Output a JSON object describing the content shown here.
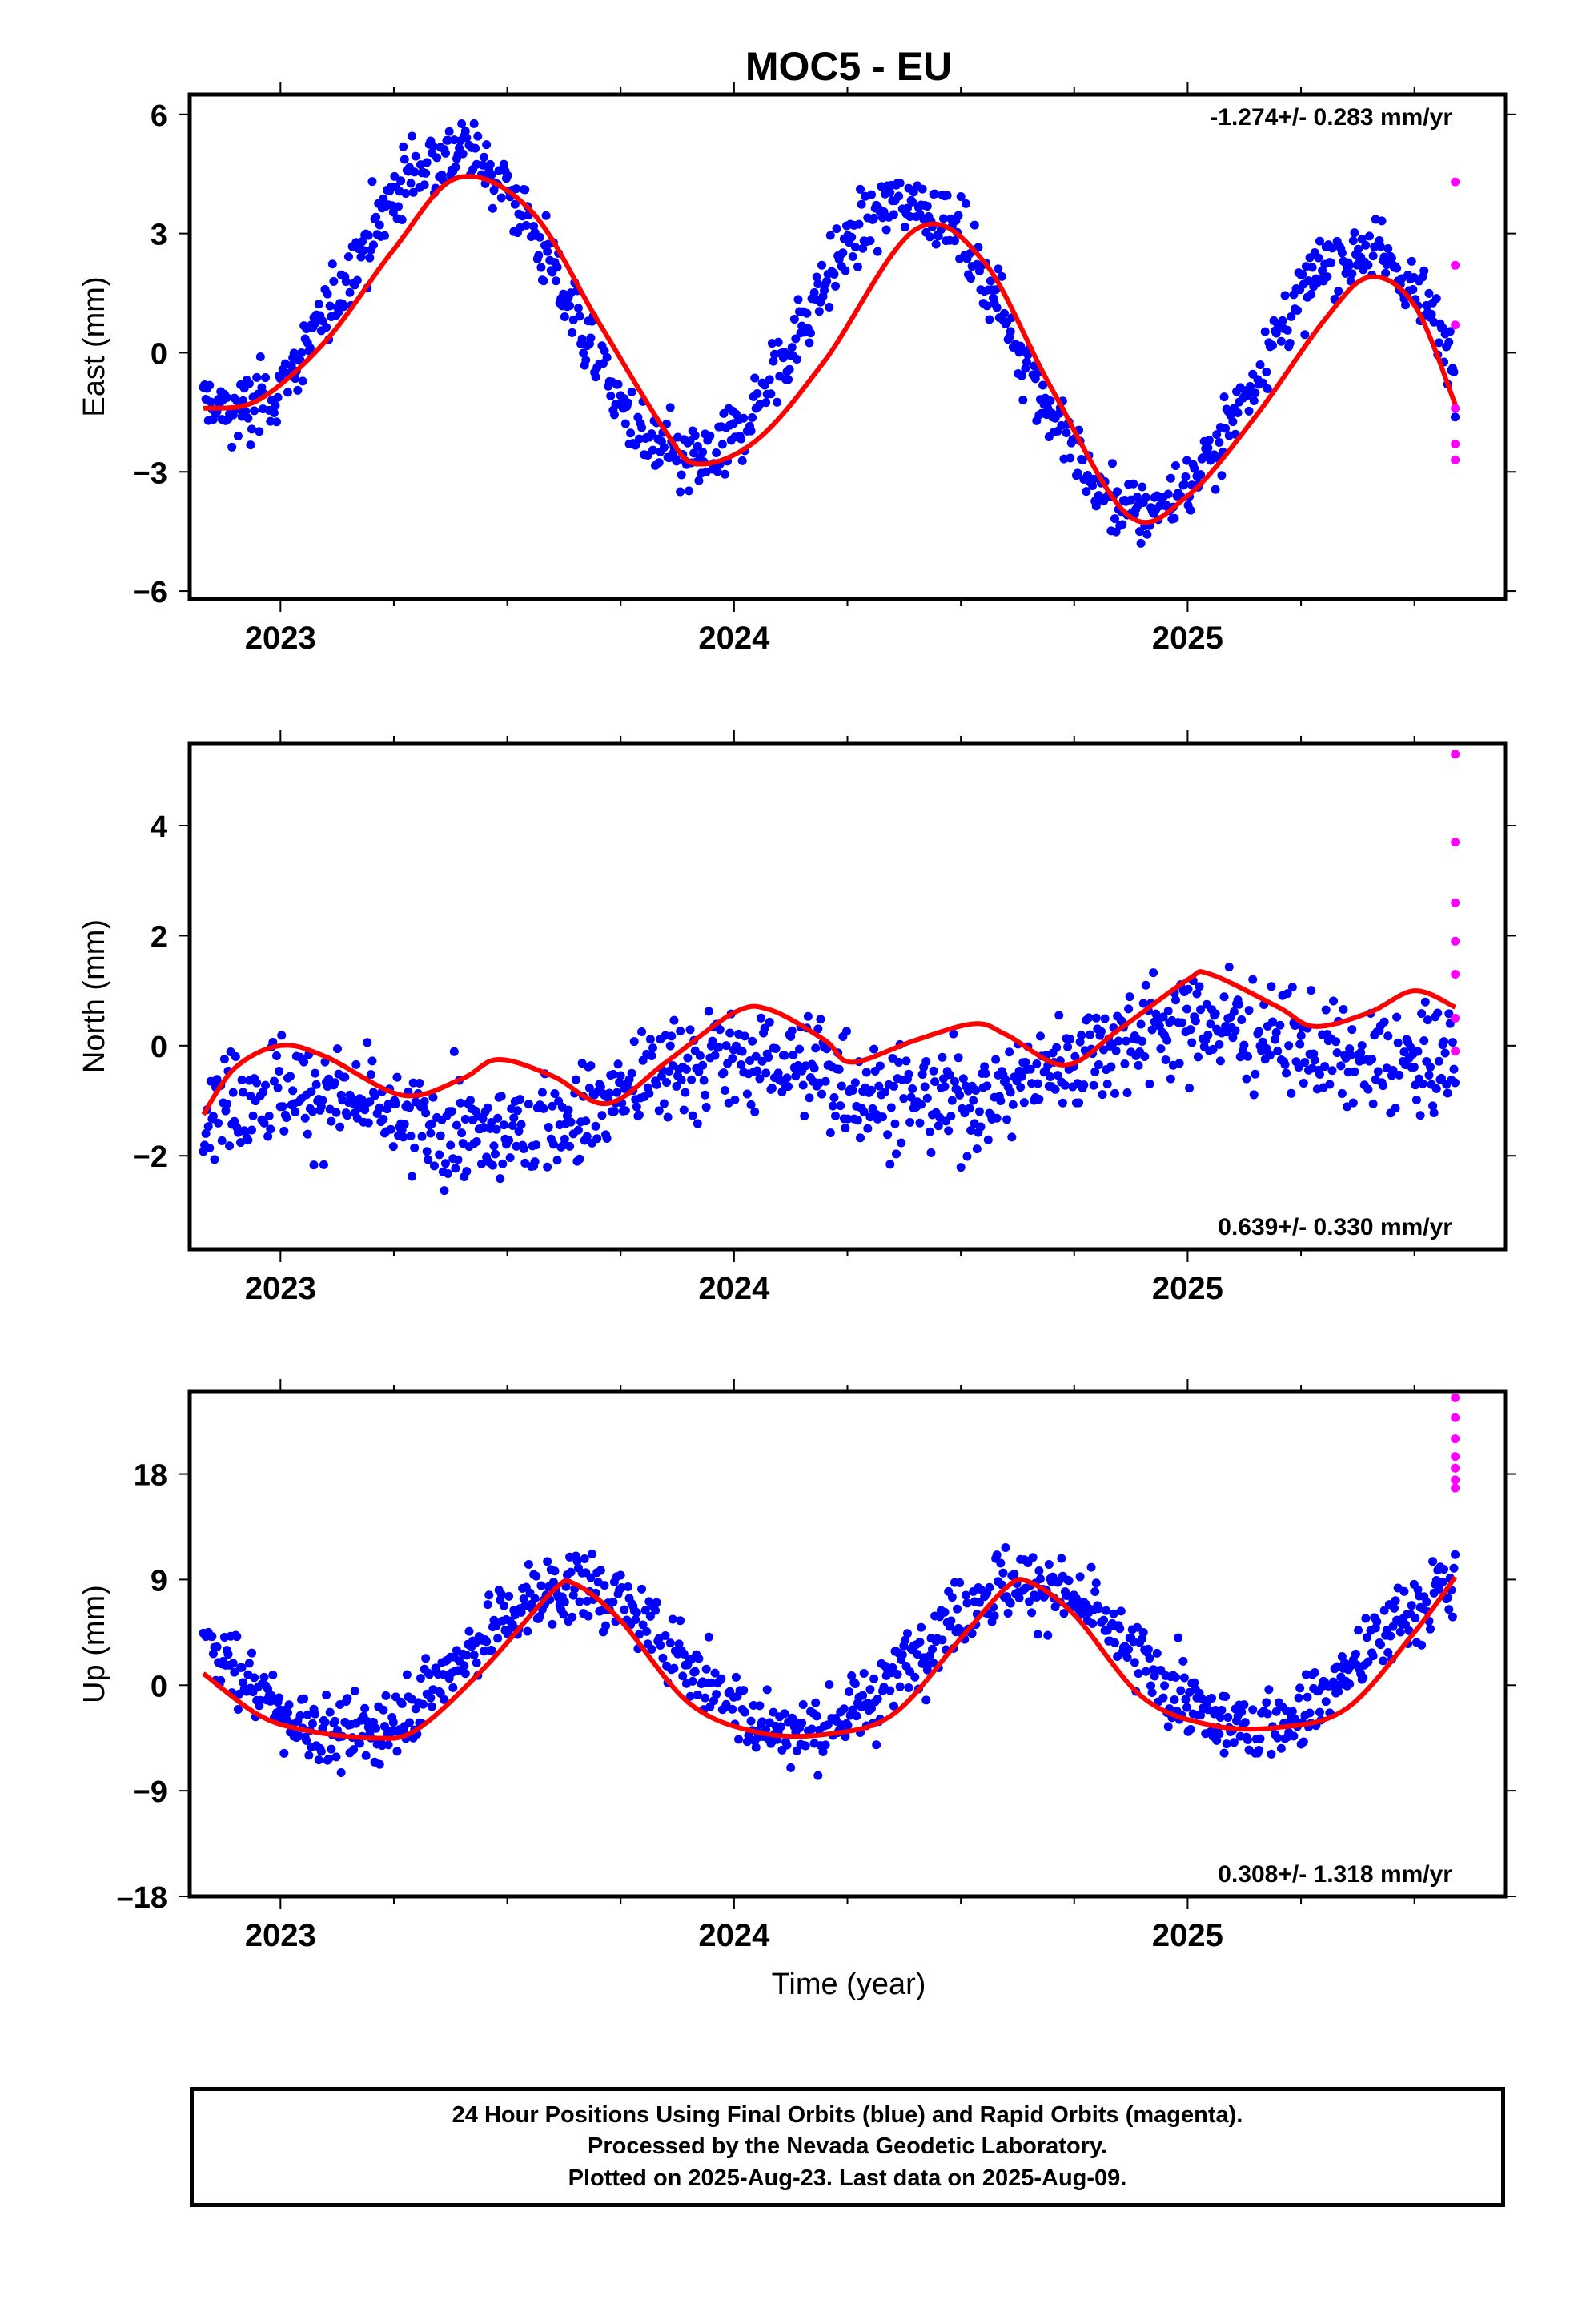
{
  "title": "MOC5 - EU",
  "time_axis": {
    "label": "Time (year)",
    "range": [
      2022.8,
      2025.7
    ],
    "ticks": [
      2023,
      2024,
      2025
    ],
    "tick_labels": [
      "2023",
      "2024",
      "2025"
    ]
  },
  "chart_data": [
    {
      "type": "scatter",
      "panel": "east",
      "ylabel": "East (mm)",
      "ylim": [
        -6.2,
        6.5
      ],
      "yticks": [
        6,
        3,
        0,
        -3,
        -6
      ],
      "ytick_labels": [
        "6",
        "3",
        "0",
        "−3",
        "−6"
      ],
      "rate_label": "-1.274+/- 0.283 mm/yr",
      "rate_position": "top-right",
      "series": [
        {
          "role": "final",
          "color": "#0000ff",
          "start": 2022.83,
          "end": 2025.59,
          "amp_mm": 3.6,
          "phase_peak": 2023.39,
          "trend_mm_yr": -1.274,
          "offset_mm": 0.7,
          "scatter_mm": 0.75
        },
        {
          "role": "rapid",
          "color": "#ff00ff",
          "x": [
            2025.59,
            2025.59,
            2025.59,
            2025.59,
            2025.59,
            2025.59
          ],
          "y": [
            4.3,
            2.2,
            0.7,
            -1.4,
            -2.3,
            -2.7
          ]
        },
        {
          "role": "fit",
          "color": "#ff0000",
          "x": [
            2022.83,
            2022.95,
            2023.1,
            2023.25,
            2023.39,
            2023.55,
            2023.7,
            2023.85,
            2023.92,
            2024.05,
            2024.2,
            2024.4,
            2024.55,
            2024.7,
            2024.87,
            2025.0,
            2025.15,
            2025.3,
            2025.4,
            2025.5,
            2025.59
          ],
          "y": [
            -1.4,
            -1.2,
            0.3,
            2.6,
            4.4,
            3.6,
            0.8,
            -2.0,
            -2.8,
            -2.2,
            -0.2,
            3.1,
            2.3,
            -0.9,
            -4.1,
            -3.6,
            -1.6,
            0.8,
            1.9,
            1.2,
            -1.3
          ]
        }
      ]
    },
    {
      "type": "scatter",
      "panel": "north",
      "ylabel": "North (mm)",
      "ylim": [
        -3.7,
        5.5
      ],
      "yticks": [
        4,
        2,
        0,
        -2
      ],
      "ytick_labels": [
        "4",
        "2",
        "0",
        "−2"
      ],
      "rate_label": "0.639+/- 0.330 mm/yr",
      "rate_position": "bottom-right",
      "series": [
        {
          "role": "final",
          "color": "#0000ff",
          "start": 2022.83,
          "end": 2025.59,
          "amp_mm": 0.55,
          "phase_peak": 2022.98,
          "trend_mm_yr": 0.639,
          "offset_mm": -0.75,
          "scatter_mm": 0.8
        },
        {
          "role": "rapid",
          "color": "#ff00ff",
          "x": [
            2025.59,
            2025.59,
            2025.59,
            2025.59,
            2025.59,
            2025.59,
            2025.59
          ],
          "y": [
            5.3,
            3.7,
            2.6,
            1.9,
            1.3,
            0.5,
            -0.1
          ]
        },
        {
          "role": "fit",
          "color": "#ff0000",
          "x": [
            2022.83,
            2022.9,
            2023.0,
            2023.1,
            2023.27,
            2023.4,
            2023.48,
            2023.6,
            2023.72,
            2023.85,
            2024.0,
            2024.08,
            2024.2,
            2024.26,
            2024.4,
            2024.53,
            2024.6,
            2024.73,
            2024.85,
            2025.0,
            2025.05,
            2025.2,
            2025.28,
            2025.4,
            2025.5,
            2025.59
          ],
          "y": [
            -1.25,
            -0.4,
            0.0,
            -0.2,
            -0.9,
            -0.6,
            -0.25,
            -0.55,
            -1.05,
            -0.3,
            0.6,
            0.65,
            0.1,
            -0.3,
            0.1,
            0.4,
            0.2,
            -0.35,
            0.3,
            1.2,
            1.3,
            0.7,
            0.35,
            0.6,
            1.0,
            0.7
          ]
        }
      ]
    },
    {
      "type": "scatter",
      "panel": "up",
      "ylabel": "Up (mm)",
      "ylim": [
        -18,
        25
      ],
      "yticks": [
        18,
        9,
        0,
        -9,
        -18
      ],
      "ytick_labels": [
        "18",
        "9",
        "0",
        "−9",
        "–18"
      ],
      "rate_label": "0.308+/- 1.318 mm/yr",
      "rate_position": "bottom-right",
      "series": [
        {
          "role": "final",
          "color": "#0000ff",
          "start": 2022.83,
          "end": 2025.59,
          "amp_mm": 6.2,
          "phase_peak": 2023.64,
          "trend_mm_yr": 0.308,
          "offset_mm": 2.2,
          "scatter_mm": 2.6
        },
        {
          "role": "rapid",
          "color": "#ff00ff",
          "x": [
            2025.59,
            2025.59,
            2025.59,
            2025.59,
            2025.59,
            2025.59,
            2025.59
          ],
          "y": [
            24.5,
            22.8,
            21.0,
            19.5,
            18.5,
            17.5,
            16.8
          ]
        },
        {
          "role": "fit",
          "color": "#ff0000",
          "x": [
            2022.83,
            2022.95,
            2023.05,
            2023.2,
            2023.3,
            2023.45,
            2023.6,
            2023.65,
            2023.75,
            2023.9,
            2024.05,
            2024.2,
            2024.35,
            2024.5,
            2024.6,
            2024.65,
            2024.75,
            2024.9,
            2025.05,
            2025.2,
            2025.35,
            2025.5,
            2025.59
          ],
          "y": [
            1.0,
            -2.5,
            -3.8,
            -4.5,
            -3.8,
            1.5,
            8.0,
            8.6,
            5.5,
            -1.5,
            -4.0,
            -4.2,
            -2.5,
            4.0,
            8.3,
            8.8,
            6.0,
            -1.0,
            -3.4,
            -3.6,
            -2.0,
            4.5,
            9.2
          ]
        }
      ]
    }
  ],
  "footer": {
    "line1": "24 Hour Positions Using Final Orbits (blue) and Rapid Orbits (magenta).",
    "line2": "Processed by the Nevada Geodetic Laboratory.",
    "line3": "Plotted on 2025-Aug-23. Last data on 2025-Aug-09."
  }
}
